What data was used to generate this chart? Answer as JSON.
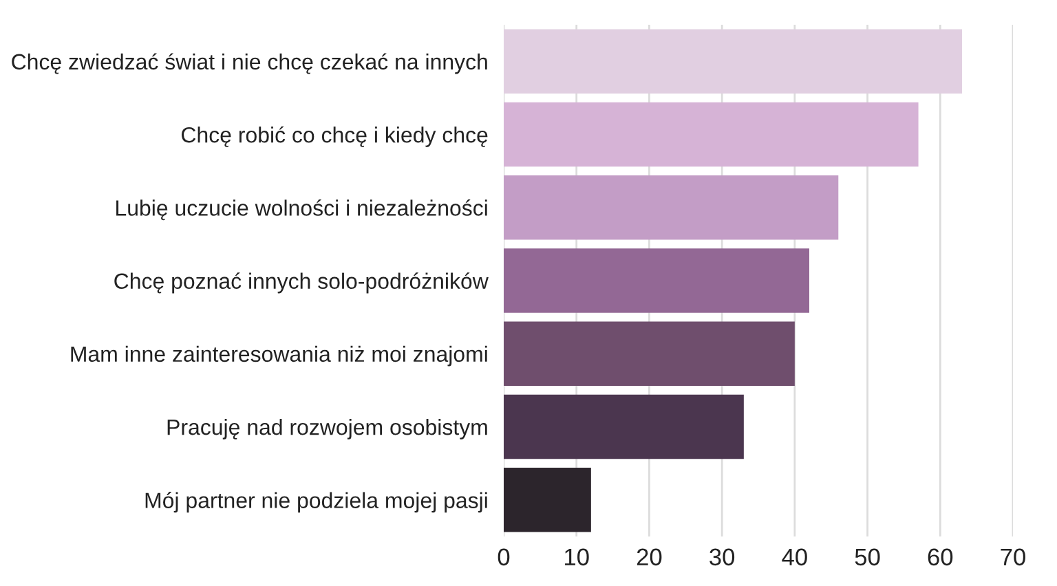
{
  "chart_data": {
    "type": "bar",
    "orientation": "horizontal",
    "categories": [
      "Chcę zwiedzać świat i nie chcę czekać na innych",
      "Chcę robić co chcę i kiedy chcę",
      "Lubię uczucie wolności i niezależności",
      "Chcę poznać innych solo-podróżników",
      "Mam inne zainteresowania niż moi znajomi",
      "Pracuję nad rozwojem osobistym",
      "Mój partner nie podziela mojej pasji"
    ],
    "values": [
      63,
      57,
      46,
      42,
      40,
      33,
      12
    ],
    "colors": [
      "#e1cfe1",
      "#d6b3d6",
      "#c39dc6",
      "#936895",
      "#6f4e6d",
      "#4b364f",
      "#2c252c"
    ],
    "xlim": [
      0,
      70
    ],
    "xticks": [
      0,
      10,
      20,
      30,
      40,
      50,
      60,
      70
    ],
    "grid": "x"
  }
}
